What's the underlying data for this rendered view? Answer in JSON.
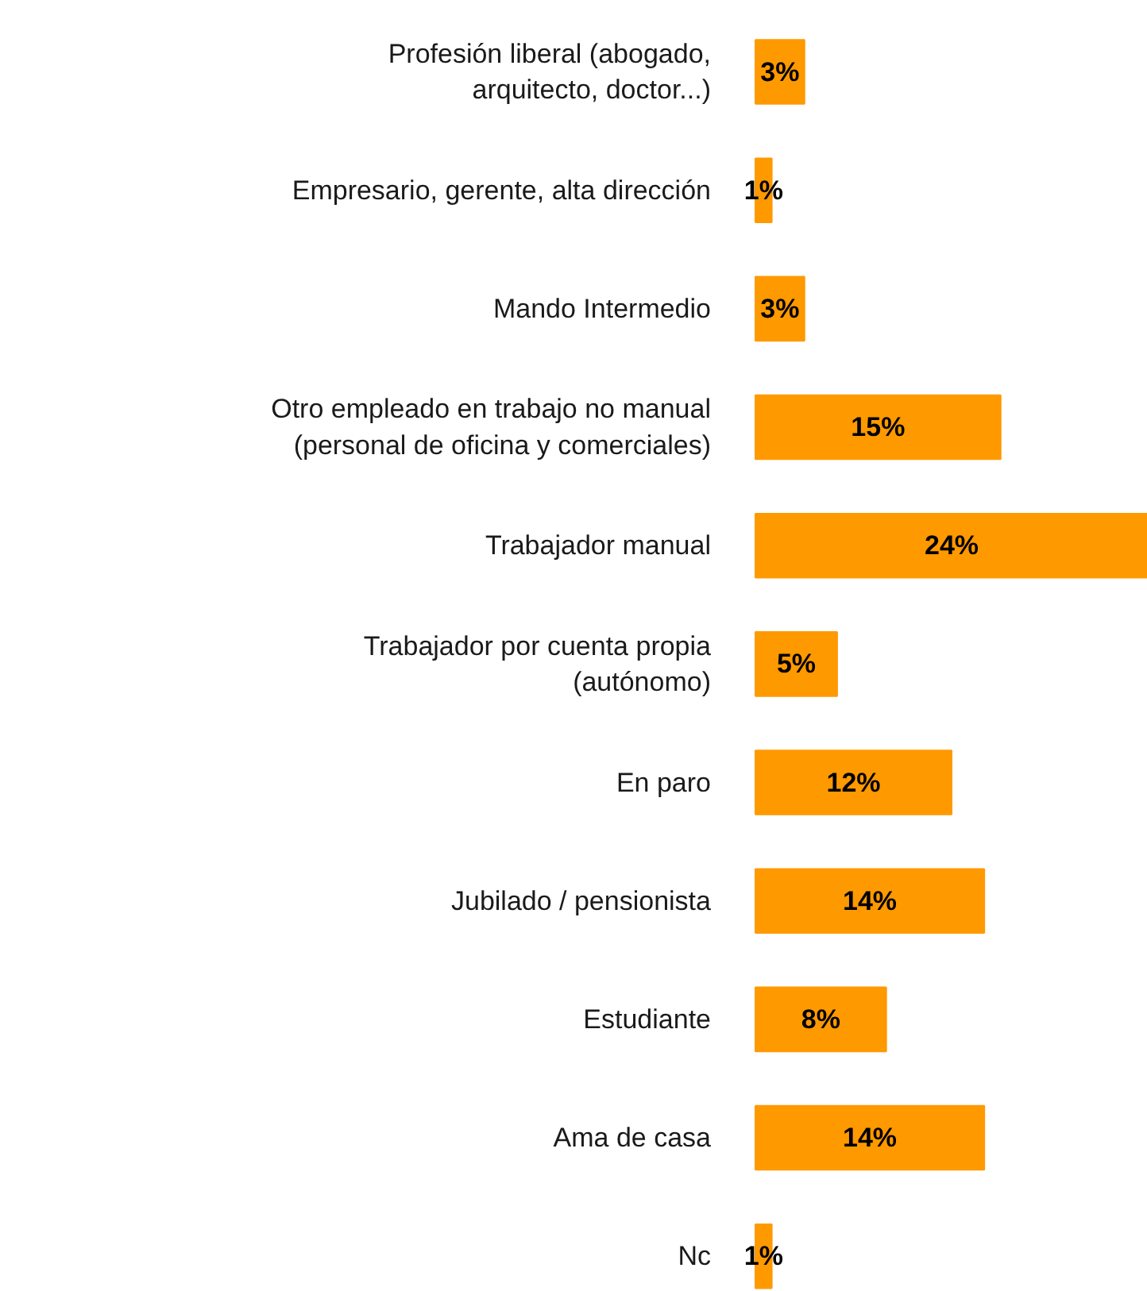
{
  "chart_data": {
    "type": "bar",
    "orientation": "horizontal",
    "data_labels": true,
    "categories": [
      "Profesión liberal (abogado,\narquitecto, doctor...)",
      "Empresario, gerente, alta dirección",
      "Mando Intermedio",
      "Otro empleado en trabajo no manual\n(personal de oficina y comerciales)",
      "Trabajador manual",
      "Trabajador por cuenta propia\n(autónomo)",
      "En paro",
      "Jubilado / pensionista",
      "Estudiante",
      "Ama de casa",
      "Nc"
    ],
    "values": [
      3,
      1,
      3,
      15,
      24,
      5,
      12,
      14,
      8,
      14,
      1
    ],
    "value_labels": [
      "3%",
      "1%",
      "3%",
      "15%",
      "24%",
      "5%",
      "12%",
      "14%",
      "8%",
      "14%",
      "1%"
    ],
    "color": "#ff9900",
    "grid": false
  }
}
